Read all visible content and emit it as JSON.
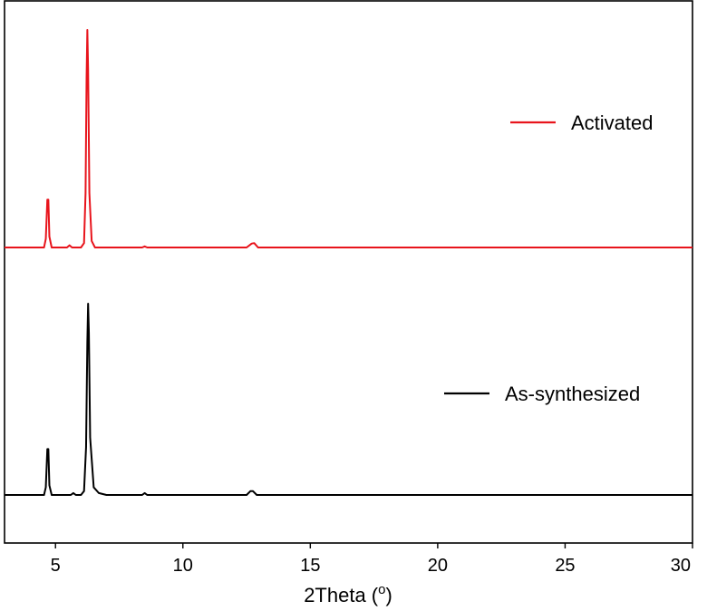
{
  "chart_data": {
    "type": "line",
    "xlabel": "2Theta (",
    "xlabel_sup": "o",
    "xlabel_close": ")",
    "xlim": [
      3,
      30
    ],
    "x_ticks": [
      5,
      10,
      15,
      20,
      25,
      30
    ],
    "x_tick_labels": [
      "5",
      "10",
      "15",
      "20",
      "25",
      "30"
    ],
    "y_axis_visible": false,
    "grid": false,
    "legend_placement": "inside-right, beside each trace",
    "series": [
      {
        "name": "Activated",
        "color": "#e8141c",
        "relative_intensity": [
          [
            3.0,
            0.0
          ],
          [
            4.55,
            0.0
          ],
          [
            4.62,
            0.04
          ],
          [
            4.68,
            0.22
          ],
          [
            4.72,
            0.22
          ],
          [
            4.76,
            0.05
          ],
          [
            4.85,
            0.0
          ],
          [
            5.45,
            0.0
          ],
          [
            5.55,
            0.01
          ],
          [
            5.65,
            0.0
          ],
          [
            6.0,
            0.0
          ],
          [
            6.12,
            0.02
          ],
          [
            6.18,
            0.25
          ],
          [
            6.22,
            0.78
          ],
          [
            6.25,
            1.0
          ],
          [
            6.28,
            0.82
          ],
          [
            6.33,
            0.25
          ],
          [
            6.42,
            0.03
          ],
          [
            6.55,
            0.0
          ],
          [
            8.4,
            0.0
          ],
          [
            8.5,
            0.005
          ],
          [
            8.6,
            0.0
          ],
          [
            12.5,
            0.0
          ],
          [
            12.7,
            0.018
          ],
          [
            12.8,
            0.02
          ],
          [
            12.95,
            0.0
          ],
          [
            30.0,
            0.0
          ]
        ]
      },
      {
        "name": "As-synthesized",
        "color": "#000000",
        "relative_intensity": [
          [
            3.0,
            0.0
          ],
          [
            4.55,
            0.0
          ],
          [
            4.62,
            0.04
          ],
          [
            4.68,
            0.24
          ],
          [
            4.72,
            0.24
          ],
          [
            4.76,
            0.05
          ],
          [
            4.85,
            0.0
          ],
          [
            5.6,
            0.0
          ],
          [
            5.7,
            0.01
          ],
          [
            5.8,
            0.0
          ],
          [
            6.0,
            0.0
          ],
          [
            6.12,
            0.02
          ],
          [
            6.2,
            0.25
          ],
          [
            6.25,
            0.8
          ],
          [
            6.28,
            1.0
          ],
          [
            6.31,
            0.85
          ],
          [
            6.36,
            0.3
          ],
          [
            6.5,
            0.04
          ],
          [
            6.7,
            0.01
          ],
          [
            7.0,
            0.0
          ],
          [
            8.4,
            0.0
          ],
          [
            8.5,
            0.01
          ],
          [
            8.6,
            0.0
          ],
          [
            12.5,
            0.0
          ],
          [
            12.65,
            0.02
          ],
          [
            12.75,
            0.02
          ],
          [
            12.9,
            0.0
          ],
          [
            30.0,
            0.0
          ]
        ]
      }
    ],
    "legend": [
      {
        "label": "Activated",
        "color": "#e8141c"
      },
      {
        "label": "As-synthesized",
        "color": "#000000"
      }
    ]
  }
}
